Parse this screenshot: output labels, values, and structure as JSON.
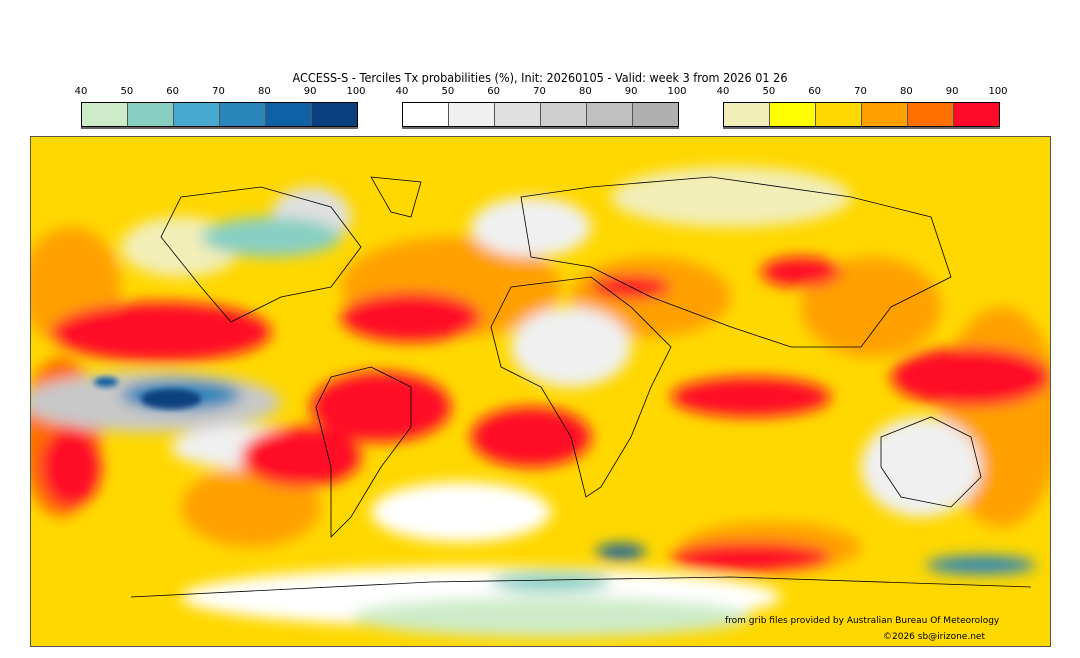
{
  "title": "ACCESS-S - Terciles Tx probabilities (%), Init: 20260105 - Valid: week 3 from 2026 01 26",
  "colorbars": [
    {
      "name": "below-normal",
      "ticks": [
        "40",
        "50",
        "60",
        "70",
        "80",
        "90",
        "100"
      ],
      "colors": [
        "#cdebc8",
        "#88cfc2",
        "#48a9d0",
        "#2a85bb",
        "#0e61a4",
        "#0a3f7f"
      ]
    },
    {
      "name": "near-normal",
      "ticks": [
        "40",
        "50",
        "60",
        "70",
        "80",
        "90",
        "100"
      ],
      "colors": [
        "#ffffff",
        "#f0f0f0",
        "#e0e0e0",
        "#cfcfcf",
        "#c0c0c0",
        "#b0b0b0"
      ]
    },
    {
      "name": "above-normal",
      "ticks": [
        "40",
        "50",
        "60",
        "70",
        "80",
        "90",
        "100"
      ],
      "colors": [
        "#f2eeb8",
        "#ffff00",
        "#ffd800",
        "#ffa000",
        "#ff7000",
        "#ff0a28"
      ]
    }
  ],
  "credits": {
    "source": "from grib files provided by Australian Bureau Of Meteorology",
    "copyright": "©2026 sb@irizone.net"
  }
}
